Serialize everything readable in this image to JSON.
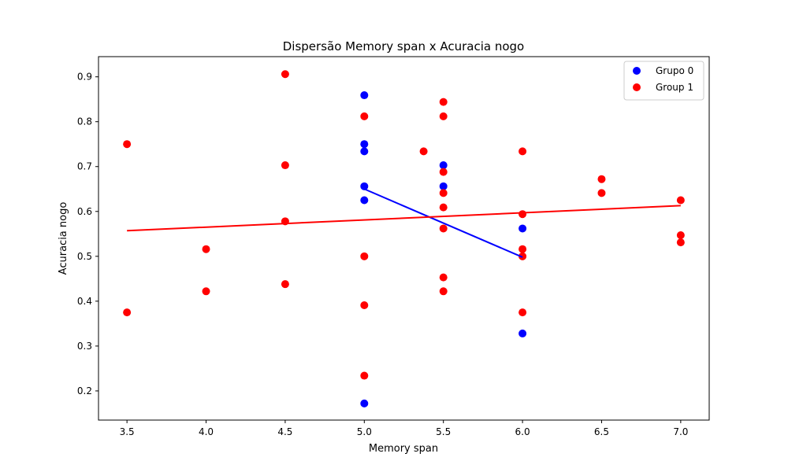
{
  "chart_data": {
    "type": "scatter",
    "title": "Dispersão Memory span x Acuracia nogo",
    "xlabel": "Memory span",
    "ylabel": "Acuracia nogo",
    "xlim": [
      3.32,
      7.18
    ],
    "ylim": [
      0.135,
      0.945
    ],
    "x_ticks": [
      3.5,
      4.0,
      4.5,
      5.0,
      5.5,
      6.0,
      6.5,
      7.0
    ],
    "x_tick_labels": [
      "3.5",
      "4.0",
      "4.5",
      "5.0",
      "5.5",
      "6.0",
      "6.5",
      "7.0"
    ],
    "y_ticks": [
      0.2,
      0.3,
      0.4,
      0.5,
      0.6,
      0.7,
      0.8,
      0.9
    ],
    "y_tick_labels": [
      "0.2",
      "0.3",
      "0.4",
      "0.5",
      "0.6",
      "0.7",
      "0.8",
      "0.9"
    ],
    "grid": false,
    "legend_position": "top-right",
    "series": [
      {
        "name": "Grupo 0",
        "color": "#0000ff",
        "points": [
          [
            5.0,
            0.859
          ],
          [
            5.0,
            0.75
          ],
          [
            5.0,
            0.734
          ],
          [
            5.0,
            0.656
          ],
          [
            5.0,
            0.625
          ],
          [
            5.0,
            0.172
          ],
          [
            5.5,
            0.703
          ],
          [
            5.5,
            0.656
          ],
          [
            6.0,
            0.562
          ],
          [
            6.0,
            0.328
          ]
        ],
        "trend": [
          [
            5.0,
            0.65
          ],
          [
            6.0,
            0.498
          ]
        ]
      },
      {
        "name": "Group 1",
        "color": "#ff0000",
        "points": [
          [
            3.5,
            0.75
          ],
          [
            3.5,
            0.375
          ],
          [
            4.0,
            0.516
          ],
          [
            4.0,
            0.422
          ],
          [
            4.5,
            0.906
          ],
          [
            4.5,
            0.703
          ],
          [
            4.5,
            0.578
          ],
          [
            4.5,
            0.438
          ],
          [
            5.0,
            0.812
          ],
          [
            5.0,
            0.5
          ],
          [
            5.0,
            0.391
          ],
          [
            5.0,
            0.234
          ],
          [
            5.375,
            0.734
          ],
          [
            5.5,
            0.844
          ],
          [
            5.5,
            0.812
          ],
          [
            5.5,
            0.688
          ],
          [
            5.5,
            0.641
          ],
          [
            5.5,
            0.609
          ],
          [
            5.5,
            0.562
          ],
          [
            5.5,
            0.453
          ],
          [
            5.5,
            0.422
          ],
          [
            6.0,
            0.734
          ],
          [
            6.0,
            0.594
          ],
          [
            6.0,
            0.516
          ],
          [
            6.0,
            0.5
          ],
          [
            6.0,
            0.375
          ],
          [
            6.5,
            0.672
          ],
          [
            6.5,
            0.641
          ],
          [
            7.0,
            0.625
          ],
          [
            7.0,
            0.547
          ],
          [
            7.0,
            0.531
          ]
        ],
        "trend": [
          [
            3.5,
            0.557
          ],
          [
            7.0,
            0.613
          ]
        ]
      }
    ]
  }
}
